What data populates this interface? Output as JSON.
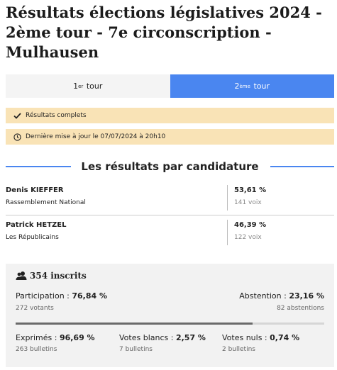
{
  "page": {
    "title": "Résultats élections législatives 2024 - 2ème tour - 7e circonscription - Mulhausen"
  },
  "tabs": [
    {
      "sup": "er",
      "label": "tour",
      "prefix": "1",
      "active": false
    },
    {
      "sup": "ème",
      "label": "tour",
      "prefix": "2",
      "active": true
    }
  ],
  "banners": {
    "complete": {
      "text": "Résultats complets",
      "icon": "check-icon"
    },
    "updated": {
      "text": "Dernière mise à jour le 07/07/2024 à 20h10",
      "icon": "clock-icon"
    }
  },
  "section": {
    "title": "Les résultats par candidature"
  },
  "candidates": [
    {
      "name": "Denis KIEFFER",
      "party": "Rassemblement National",
      "percent": "53,61 %",
      "votes": "141 voix"
    },
    {
      "name": "Patrick HETZEL",
      "party": "Les Républicains",
      "percent": "46,39 %",
      "votes": "122 voix"
    }
  ],
  "stats": {
    "inscrits": "354 inscrits",
    "participation_label": "Participation :",
    "participation_value": "76,84 %",
    "votants": "272 votants",
    "abstention_label": "Abstention :",
    "abstention_value": "23,16 %",
    "abstentions": "82 abstentions",
    "participation_fraction": 0.7684,
    "exprimes_label": "Exprimés :",
    "exprimes_value": "96,69 %",
    "exprimes_sub": "263 bulletins",
    "blancs_label": "Votes blancs :",
    "blancs_value": "2,57 %",
    "blancs_sub": "7 bulletins",
    "nuls_label": "Votes nuls :",
    "nuls_value": "0,74 %",
    "nuls_sub": "2 bulletins"
  },
  "colors": {
    "accent": "#4a86f0",
    "banner": "#f9e3b6",
    "stats_bg": "#f2f2f2"
  }
}
